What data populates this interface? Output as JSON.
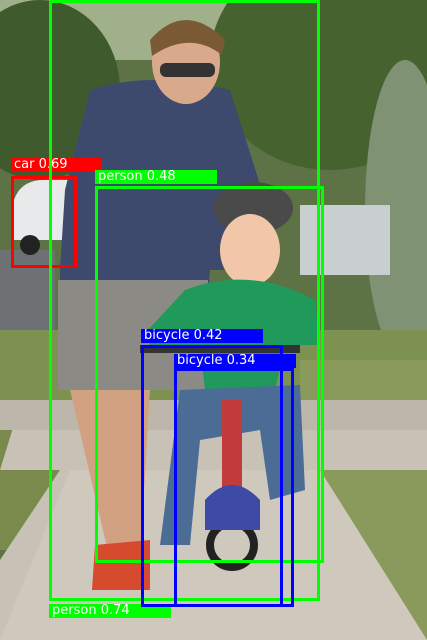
{
  "image": {
    "description_for_alt": "Father helping child ride a bicycle on a sidewalk, with object detection boxes"
  },
  "detections": [
    {
      "label": "car 0.69",
      "class": "car",
      "color": "#ff0000"
    },
    {
      "label": "person 0.48",
      "class": "person",
      "color": "#00ff00"
    },
    {
      "label": "person 0.74",
      "class": "person",
      "color": "#00ff00"
    },
    {
      "label": "bicycle 0.42",
      "class": "bicycle",
      "color": "#0000ff"
    },
    {
      "label": "bicycle 0.34",
      "class": "bicycle",
      "color": "#0000ff"
    }
  ],
  "colors": {
    "car": "#ff0000",
    "person": "#00ff00",
    "bicycle": "#0000ff",
    "label_text": "#ffffff"
  }
}
